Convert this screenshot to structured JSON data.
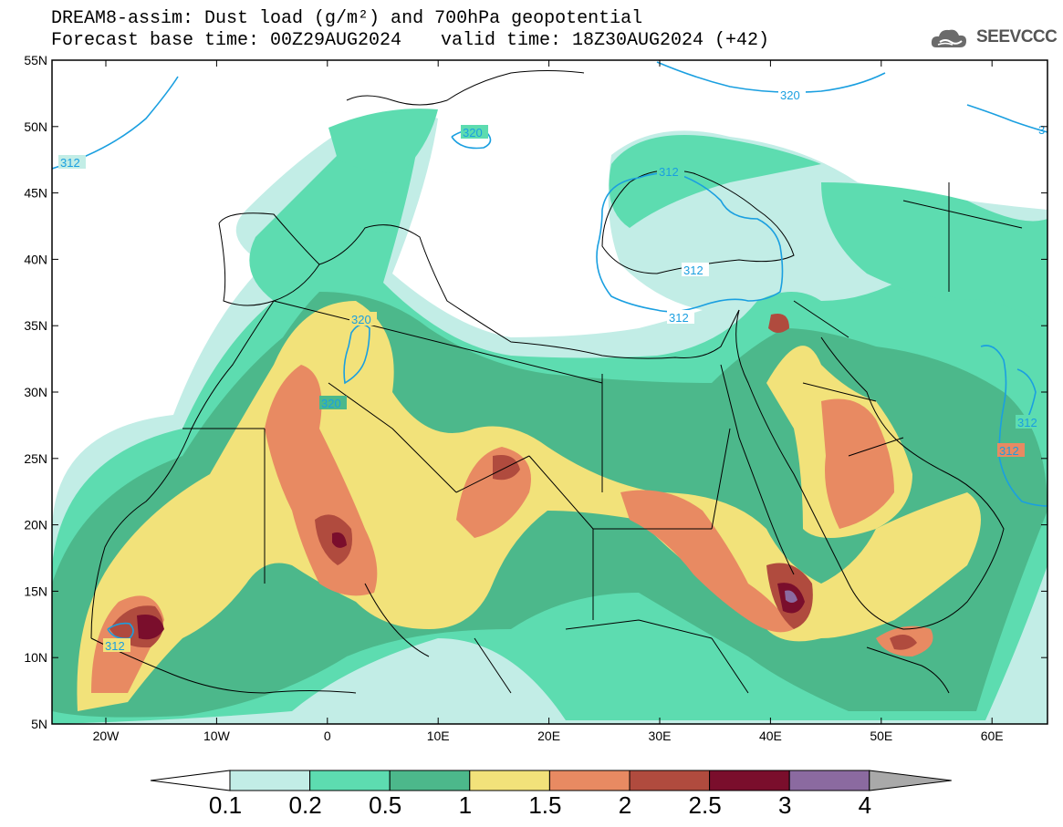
{
  "header": {
    "title_line1": "DREAM8-assim: Dust load (g/m²) and 700hPa geopotential",
    "base_time": "Forecast base time: 00Z29AUG2024",
    "valid_time": "valid time: 18Z30AUG2024 (+42)"
  },
  "logo": {
    "text": "SEEVCCC",
    "icon": "cloud-icon"
  },
  "axes": {
    "lat_labels": [
      "55N",
      "50N",
      "45N",
      "40N",
      "35N",
      "30N",
      "25N",
      "20N",
      "15N",
      "10N",
      "5N"
    ],
    "lon_labels": [
      "20W",
      "10W",
      "0",
      "10E",
      "20E",
      "30E",
      "40E",
      "50E",
      "60E"
    ]
  },
  "contours": {
    "color": "#1a9fe0",
    "labels": [
      "312",
      "320",
      "320",
      "320",
      "312",
      "312",
      "320",
      "312",
      "312",
      "312",
      "312",
      "3"
    ]
  },
  "colorbar": {
    "levels": [
      "0.1",
      "0.2",
      "0.5",
      "1",
      "1.5",
      "2",
      "2.5",
      "3",
      "4"
    ],
    "colors": [
      "#c2ede6",
      "#5ddcb0",
      "#4cb88b",
      "#f2e27a",
      "#e88a62",
      "#b04b3e",
      "#7a0e2c",
      "#8b6aa0",
      "#a9a9a9"
    ]
  }
}
